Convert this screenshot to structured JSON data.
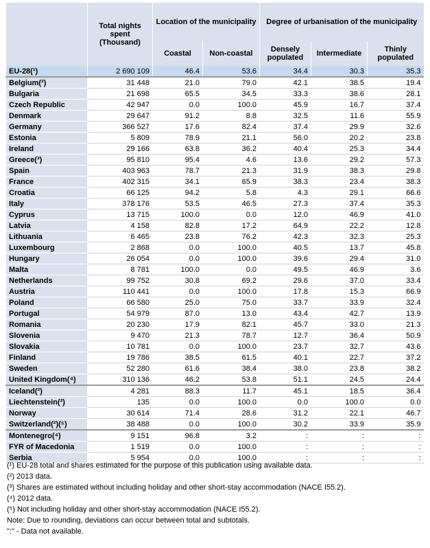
{
  "header": {
    "total": "Total nights spent (Thousand)",
    "location": "Location of the municipality",
    "coastal": "Coastal",
    "noncoastal": "Non-coastal",
    "urbanisation": "Degree of urbanisation of the municipality",
    "dense": "Densely populated",
    "intermediate": "Intermediate",
    "thin": "Thinly populated"
  },
  "table": {
    "groups": [
      [
        [
          "EU-28(¹)",
          "2 690 109",
          "46.4",
          "53.6",
          "34.4",
          "30.3",
          "35.3"
        ]
      ],
      [
        [
          "Belgium(²)",
          "31 448",
          "21.0",
          "79.0",
          "42.1",
          "38.5",
          "19.4"
        ],
        [
          "Bulgaria",
          "21 698",
          "65.5",
          "34.5",
          "33.3",
          "38.6",
          "28.1"
        ],
        [
          "Czech Republic",
          "42 947",
          "0.0",
          "100.0",
          "45.9",
          "16.7",
          "37.4"
        ],
        [
          "Denmark",
          "29 647",
          "91.2",
          "8.8",
          "32.5",
          "11.6",
          "55.9"
        ],
        [
          "Germany",
          "366 527",
          "17.6",
          "82.4",
          "37.4",
          "29.9",
          "32.6"
        ],
        [
          "Estonia",
          "5 809",
          "78.9",
          "21.1",
          "56.0",
          "20.2",
          "23.8"
        ],
        [
          "Ireland",
          "29 166",
          "63.8",
          "36.2",
          "40.4",
          "25.3",
          "34.4"
        ],
        [
          "Greece(³)",
          "95 810",
          "95.4",
          "4.6",
          "13.6",
          "29.2",
          "57.3"
        ],
        [
          "Spain",
          "403 963",
          "78.7",
          "21.3",
          "31.9",
          "38.3",
          "29.8"
        ],
        [
          "France",
          "402 315",
          "34.1",
          "65.9",
          "38.3",
          "23.4",
          "38.3"
        ],
        [
          "Croatia",
          "66 125",
          "94.2",
          "5.8",
          "4.3",
          "29.1",
          "66.6"
        ],
        [
          "Italy",
          "378 176",
          "53.5",
          "46.5",
          "27.3",
          "37.4",
          "35.3"
        ],
        [
          "Cyprus",
          "13 715",
          "100.0",
          "0.0",
          "12.0",
          "46.9",
          "41.0"
        ],
        [
          "Latvia",
          "4 158",
          "82.8",
          "17.2",
          "64.9",
          "22.2",
          "12.8"
        ],
        [
          "Lithuania",
          "6 465",
          "23.8",
          "76.2",
          "42.3",
          "32.3",
          "25.3"
        ],
        [
          "Luxembourg",
          "2 868",
          "0.0",
          "100.0",
          "40.5",
          "13.7",
          "45.8"
        ],
        [
          "Hungary",
          "26 054",
          "0.0",
          "100.0",
          "39.6",
          "29.4",
          "31.0"
        ],
        [
          "Malta",
          "8 781",
          "100.0",
          "0.0",
          "49.5",
          "46.9",
          "3.6"
        ],
        [
          "Netherlands",
          "99 752",
          "30.8",
          "69.2",
          "29.6",
          "37.0",
          "33.4"
        ],
        [
          "Austria",
          "110 441",
          "0.0",
          "100.0",
          "17.8",
          "15.3",
          "66.9"
        ],
        [
          "Poland",
          "66 580",
          "25.0",
          "75.0",
          "33.7",
          "33.9",
          "32.4"
        ],
        [
          "Portugal",
          "54 979",
          "87.0",
          "13.0",
          "43.4",
          "42.7",
          "13.9"
        ],
        [
          "Romania",
          "20 230",
          "17.9",
          "82.1",
          "45.7",
          "33.0",
          "21.3"
        ],
        [
          "Slovenia",
          "9 470",
          "21.3",
          "78.7",
          "12.7",
          "36.4",
          "50.9"
        ],
        [
          "Slovakia",
          "10 781",
          "0.0",
          "100.0",
          "23.7",
          "32.7",
          "43.6"
        ],
        [
          "Finland",
          "19 786",
          "38.5",
          "61.5",
          "40.1",
          "22.7",
          "37.2"
        ],
        [
          "Sweden",
          "52 280",
          "61.6",
          "38.4",
          "38.0",
          "23.8",
          "38.2"
        ],
        [
          "United Kingdom(⁴)",
          "310 136",
          "46.2",
          "53.8",
          "51.1",
          "24.5",
          "24.4"
        ]
      ],
      [
        [
          "Iceland(²)",
          "4 281",
          "88.3",
          "11.7",
          "45.1",
          "18.5",
          "36.4"
        ],
        [
          "Liechtenstein(²)",
          "135",
          "0.0",
          "100.0",
          "0.0",
          "100.0",
          "0.0"
        ],
        [
          "Norway",
          "30 614",
          "71.4",
          "28.6",
          "31.2",
          "22.1",
          "46.7"
        ],
        [
          "Switzerland(²)(⁵)",
          "38 488",
          "0.0",
          "100.0",
          "30.2",
          "33.9",
          "35.9"
        ]
      ],
      [
        [
          "Montenegro(⁴)",
          "9 151",
          "96.8",
          "3.2",
          ":",
          ":",
          ":"
        ],
        [
          "FYR of Macedonia",
          "1 519",
          "0.0",
          "100.0",
          ":",
          ":",
          ":"
        ],
        [
          "Serbia",
          "5 954",
          "0.0",
          "100.0",
          ":",
          ":",
          ":"
        ]
      ]
    ]
  },
  "notes": [
    "(¹) EU-28 total and shares estimated for the purpose of this publication using available data.",
    "(²) 2013 data.",
    "(³) Shares are estimated without including holiday and other short-stay accommodation (NACE I55.2).",
    "(⁴) 2012 data.",
    "(⁵)  Not including holiday and other short-stay accommodation (NACE I55.2).",
    "Note: Due to rounding, deviations can occur between total and subtotals.",
    "\":\" - Data not available."
  ]
}
